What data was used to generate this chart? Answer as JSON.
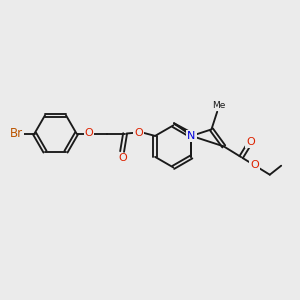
{
  "bg_color": "#ebebeb",
  "bond_color": "#1a1a1a",
  "N_color": "#0000dd",
  "O_color": "#dd2200",
  "Br_color": "#bb5500",
  "lw": 1.35,
  "dbo": 0.058,
  "fs": 8.0,
  "xlim": [
    0,
    10
  ],
  "ylim": [
    0,
    10
  ]
}
